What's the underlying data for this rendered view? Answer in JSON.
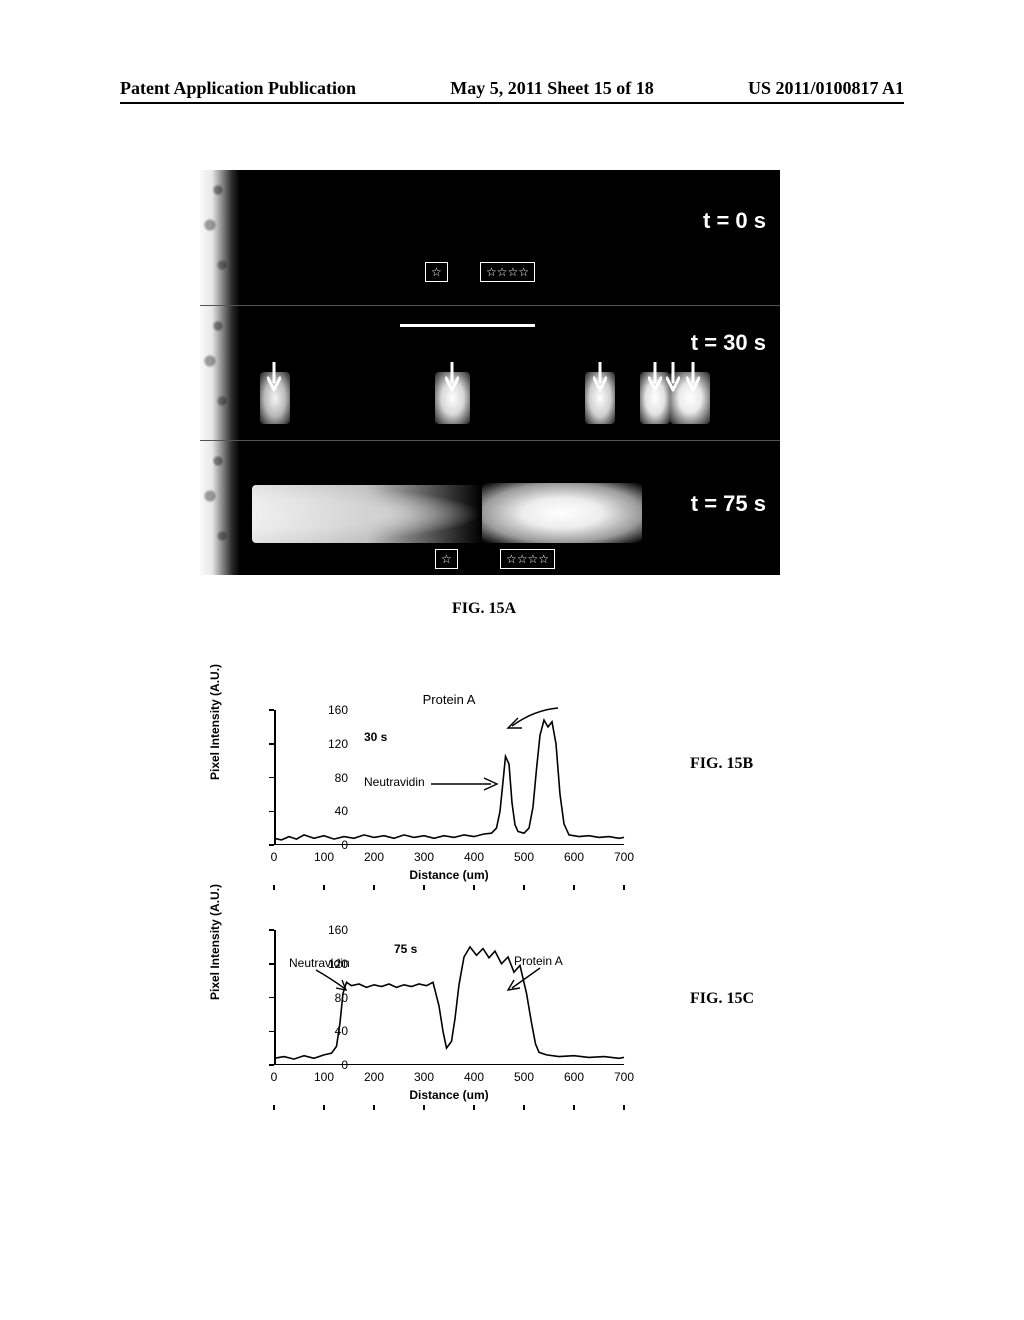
{
  "header": {
    "left": "Patent Application Publication",
    "center": "May 5, 2011  Sheet 15 of 18",
    "right": "US 2011/0100817 A1"
  },
  "figA": {
    "caption": "FIG. 15A",
    "panels": {
      "t0": {
        "label": "t = 0 s"
      },
      "t30": {
        "label": "t = 30 s"
      },
      "t75": {
        "label": "t = 75 s"
      }
    },
    "stars_single_glyph": "☆",
    "stars_multi_glyph": "☆☆☆☆",
    "colors": {
      "bg": "#000000",
      "fg": "#ffffff"
    }
  },
  "chartB": {
    "caption": "FIG. 15B",
    "title": "Protein A",
    "time_label": "30 s",
    "y_label": "Pixel Intensity (A.U.)",
    "x_label": "Distance (um)",
    "xlim": [
      0,
      700
    ],
    "ylim": [
      0,
      160
    ],
    "xticks": [
      0,
      100,
      200,
      300,
      400,
      500,
      600,
      700
    ],
    "yticks": [
      0,
      40,
      80,
      120,
      160
    ],
    "trace_color": "#000000",
    "annotations": {
      "neutravidin": "Neutravidin",
      "proteinA": "Protein A"
    },
    "trace": [
      [
        0,
        8
      ],
      [
        15,
        6
      ],
      [
        30,
        10
      ],
      [
        45,
        7
      ],
      [
        60,
        12
      ],
      [
        80,
        8
      ],
      [
        100,
        11
      ],
      [
        120,
        7
      ],
      [
        140,
        10
      ],
      [
        160,
        8
      ],
      [
        180,
        12
      ],
      [
        200,
        9
      ],
      [
        220,
        11
      ],
      [
        240,
        8
      ],
      [
        260,
        12
      ],
      [
        280,
        9
      ],
      [
        300,
        11
      ],
      [
        320,
        8
      ],
      [
        340,
        11
      ],
      [
        360,
        9
      ],
      [
        380,
        12
      ],
      [
        400,
        10
      ],
      [
        420,
        13
      ],
      [
        435,
        14
      ],
      [
        445,
        20
      ],
      [
        452,
        40
      ],
      [
        458,
        75
      ],
      [
        463,
        105
      ],
      [
        470,
        96
      ],
      [
        476,
        50
      ],
      [
        482,
        24
      ],
      [
        488,
        16
      ],
      [
        500,
        14
      ],
      [
        510,
        20
      ],
      [
        518,
        45
      ],
      [
        525,
        90
      ],
      [
        532,
        130
      ],
      [
        540,
        148
      ],
      [
        548,
        140
      ],
      [
        556,
        146
      ],
      [
        564,
        120
      ],
      [
        572,
        60
      ],
      [
        580,
        25
      ],
      [
        590,
        12
      ],
      [
        610,
        10
      ],
      [
        630,
        11
      ],
      [
        650,
        9
      ],
      [
        670,
        10
      ],
      [
        690,
        8
      ],
      [
        700,
        9
      ]
    ]
  },
  "chartC": {
    "caption": "FIG. 15C",
    "time_label": "75 s",
    "y_label": "Pixel Intensity (A.U.)",
    "x_label": "Distance (um)",
    "xlim": [
      0,
      700
    ],
    "ylim": [
      0,
      160
    ],
    "xticks": [
      0,
      100,
      200,
      300,
      400,
      500,
      600,
      700
    ],
    "yticks": [
      0,
      40,
      80,
      120,
      160
    ],
    "trace_color": "#000000",
    "annotations": {
      "neutravidin": "Neutravidin",
      "proteinA": "Protein A"
    },
    "trace": [
      [
        0,
        8
      ],
      [
        20,
        10
      ],
      [
        40,
        7
      ],
      [
        60,
        11
      ],
      [
        80,
        8
      ],
      [
        100,
        12
      ],
      [
        115,
        14
      ],
      [
        125,
        22
      ],
      [
        132,
        50
      ],
      [
        138,
        85
      ],
      [
        145,
        98
      ],
      [
        155,
        94
      ],
      [
        170,
        96
      ],
      [
        185,
        92
      ],
      [
        200,
        95
      ],
      [
        215,
        93
      ],
      [
        230,
        96
      ],
      [
        245,
        92
      ],
      [
        260,
        95
      ],
      [
        275,
        93
      ],
      [
        290,
        96
      ],
      [
        305,
        94
      ],
      [
        318,
        98
      ],
      [
        330,
        70
      ],
      [
        338,
        40
      ],
      [
        345,
        20
      ],
      [
        355,
        28
      ],
      [
        362,
        55
      ],
      [
        370,
        95
      ],
      [
        380,
        128
      ],
      [
        392,
        140
      ],
      [
        405,
        130
      ],
      [
        418,
        138
      ],
      [
        430,
        127
      ],
      [
        442,
        135
      ],
      [
        455,
        120
      ],
      [
        468,
        128
      ],
      [
        480,
        110
      ],
      [
        492,
        118
      ],
      [
        505,
        85
      ],
      [
        515,
        50
      ],
      [
        523,
        25
      ],
      [
        530,
        15
      ],
      [
        545,
        12
      ],
      [
        570,
        10
      ],
      [
        600,
        11
      ],
      [
        630,
        9
      ],
      [
        660,
        10
      ],
      [
        690,
        8
      ],
      [
        700,
        9
      ]
    ]
  }
}
